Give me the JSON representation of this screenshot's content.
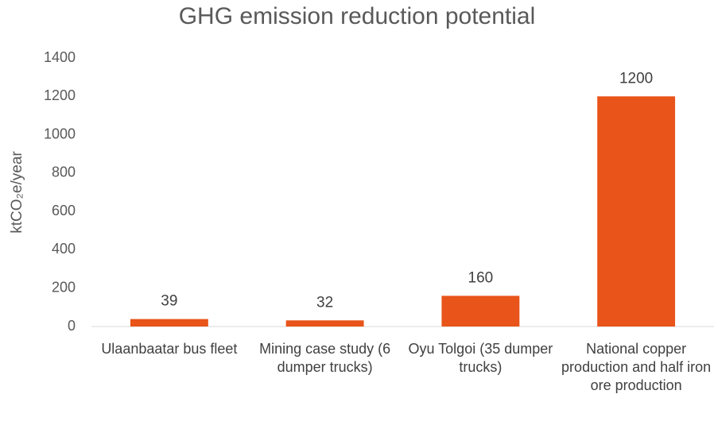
{
  "chart_data": {
    "type": "bar",
    "title": "GHG emission reduction potential",
    "y_label": "ktCO₂e/year",
    "categories": [
      "Ulaanbaatar bus fleet",
      "Mining case study (6 dumper trucks)",
      "Oyu Tolgoi (35 dumper trucks)",
      "National copper production and half iron ore production"
    ],
    "values": [
      39,
      32,
      160,
      1200
    ],
    "color": "#e8541a",
    "ylim": [
      0,
      1400
    ],
    "yticks": [
      0,
      200,
      400,
      600,
      800,
      1000,
      1200,
      1400
    ],
    "grid": false
  }
}
